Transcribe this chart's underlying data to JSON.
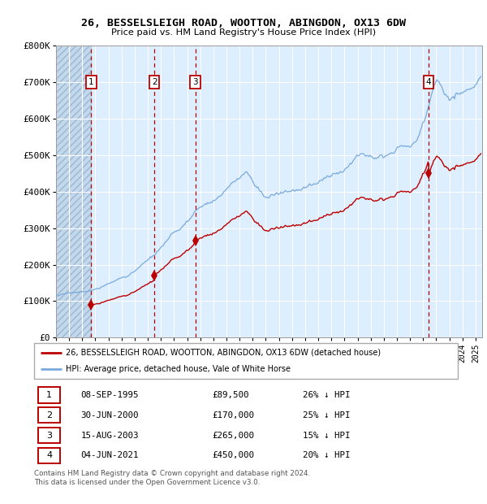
{
  "title1": "26, BESSELSLEIGH ROAD, WOOTTON, ABINGDON, OX13 6DW",
  "title2": "Price paid vs. HM Land Registry's House Price Index (HPI)",
  "legend_line1": "26, BESSELSLEIGH ROAD, WOOTTON, ABINGDON, OX13 6DW (detached house)",
  "legend_line2": "HPI: Average price, detached house, Vale of White Horse",
  "footer1": "Contains HM Land Registry data © Crown copyright and database right 2024.",
  "footer2": "This data is licensed under the Open Government Licence v3.0.",
  "sales": [
    {
      "num": 1,
      "date_label": "08-SEP-1995",
      "price": 89500,
      "pct": "26%",
      "x_year": 1995.69
    },
    {
      "num": 2,
      "date_label": "30-JUN-2000",
      "price": 170000,
      "pct": "25%",
      "x_year": 2000.5
    },
    {
      "num": 3,
      "date_label": "15-AUG-2003",
      "price": 265000,
      "pct": "15%",
      "x_year": 2003.62
    },
    {
      "num": 4,
      "date_label": "04-JUN-2021",
      "price": 450000,
      "pct": "20%",
      "x_year": 2021.42
    }
  ],
  "ylim": [
    0,
    800000
  ],
  "xlim": [
    1993,
    2025.5
  ],
  "yticks": [
    0,
    100000,
    200000,
    300000,
    400000,
    500000,
    600000,
    700000,
    800000
  ],
  "ytick_labels": [
    "£0",
    "£100K",
    "£200K",
    "£300K",
    "£400K",
    "£500K",
    "£600K",
    "£700K",
    "£800K"
  ],
  "hatch_region_end": 1995.69,
  "red_color": "#bb0000",
  "blue_color": "#7aaadd",
  "plot_bg": "#ddeeff",
  "grid_color": "#ffffff",
  "hatch_color": "#c4d8ec"
}
